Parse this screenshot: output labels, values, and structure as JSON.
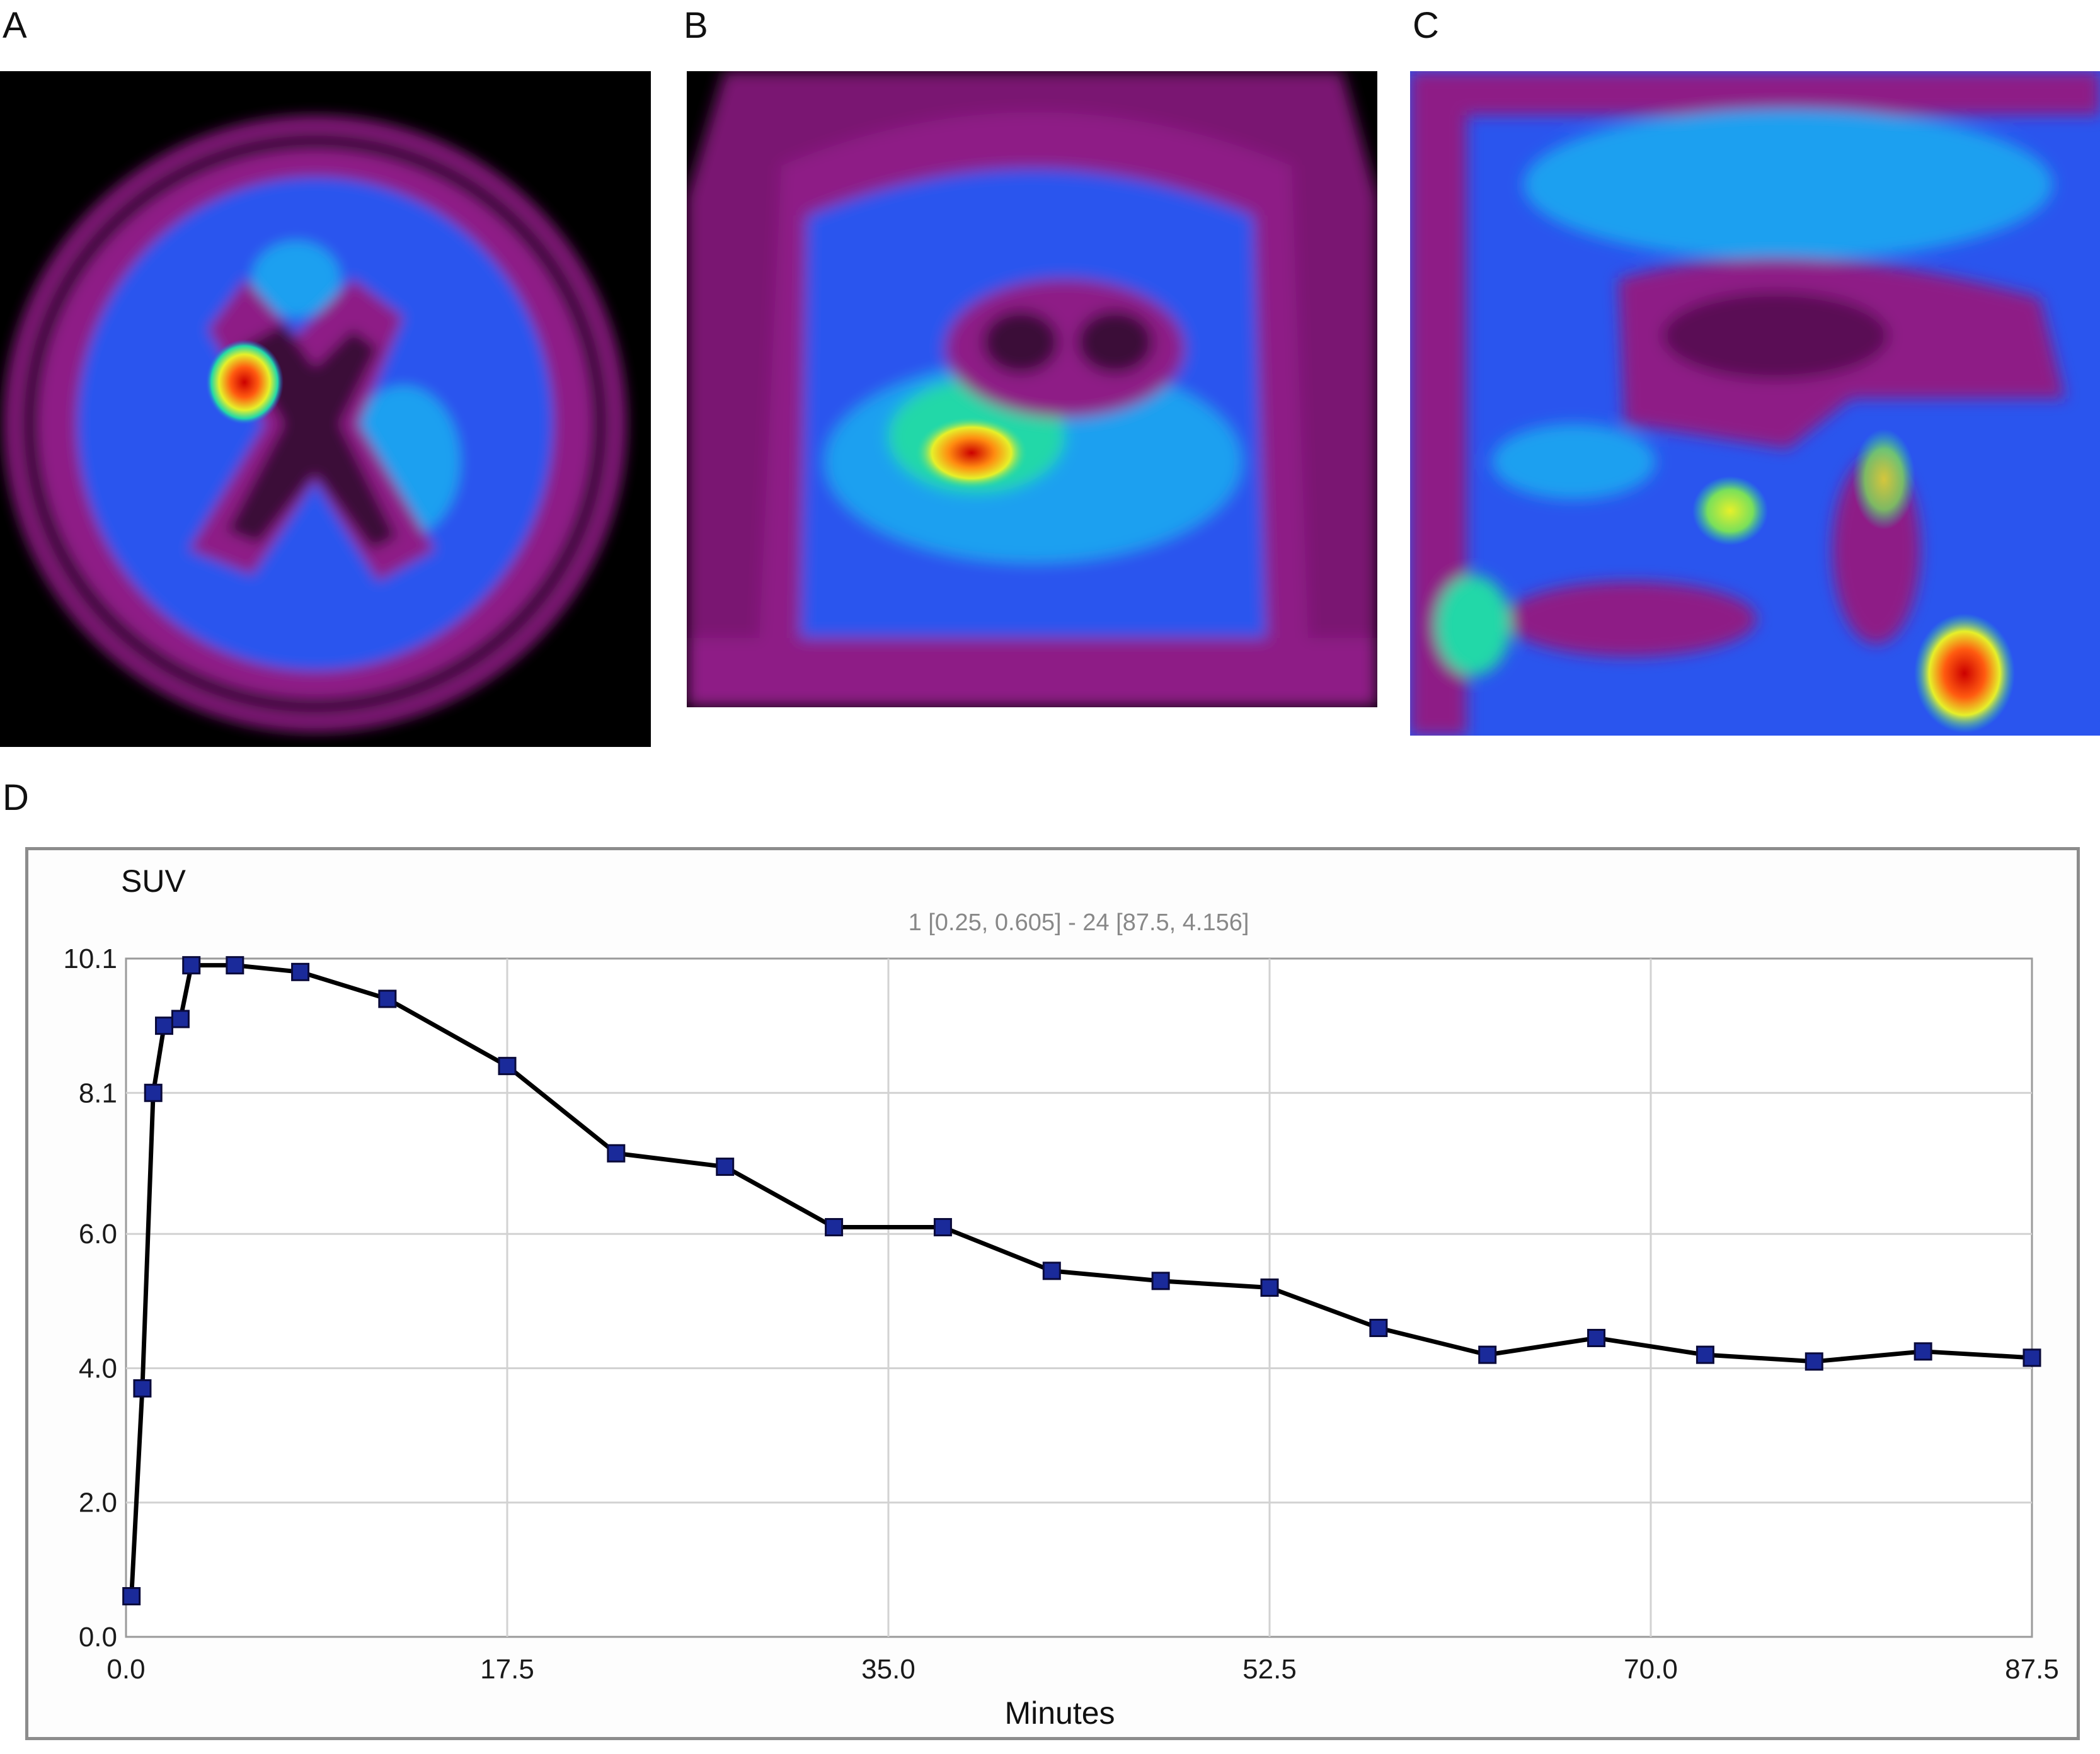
{
  "panels": {
    "a_label": "A",
    "b_label": "B",
    "c_label": "C",
    "d_label": "D"
  },
  "scans": {
    "colormap": [
      "#000000",
      "#5a0a55",
      "#8e1a86",
      "#2a55ee",
      "#1aa0f0",
      "#22d8a8",
      "#e6f02a",
      "#ff5a10",
      "#cc0000"
    ],
    "views": [
      "axial",
      "coronal",
      "sagittal"
    ]
  },
  "chart_data": {
    "type": "line",
    "ylabel": "SUV",
    "xlabel": "Minutes",
    "range_note": "1 [0.25, 0.605] - 24 [87.5, 4.156]",
    "xlim": [
      0,
      87.5
    ],
    "ylim": [
      0,
      10.1
    ],
    "x_ticks": [
      "0.0",
      "17.5",
      "35.0",
      "52.5",
      "70.0",
      "87.5"
    ],
    "y_ticks": [
      "0.0",
      "2.0",
      "4.0",
      "6.0",
      "8.1",
      "10.1"
    ],
    "grid": true,
    "line_color": "#000000",
    "marker_color": "#1a2a9a",
    "series": [
      {
        "x": [
          0.25,
          0.75,
          1.25,
          1.75,
          2.5,
          3.0,
          5.0,
          8.0,
          12.0,
          17.5,
          22.5,
          27.5,
          32.5,
          37.5,
          42.5,
          47.5,
          52.5,
          57.5,
          62.5,
          67.5,
          72.5,
          77.5,
          82.5,
          87.5
        ],
        "y": [
          0.605,
          3.7,
          8.1,
          9.1,
          9.2,
          10.0,
          10.0,
          9.9,
          9.5,
          8.5,
          7.2,
          7.0,
          6.1,
          6.1,
          5.45,
          5.3,
          5.2,
          4.6,
          4.2,
          4.45,
          4.2,
          4.1,
          4.25,
          4.156
        ]
      }
    ]
  }
}
